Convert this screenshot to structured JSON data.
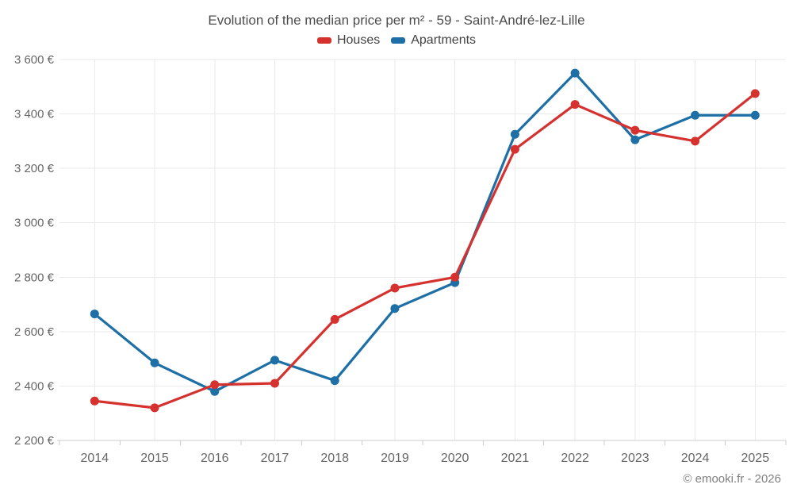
{
  "page": {
    "title": "Evolution of the median price per m² - 59 - Saint-André-lez-Lille",
    "footer_credit": "© emooki.fr - 2026"
  },
  "legend": {
    "items": [
      {
        "label": "Houses",
        "color": "#d5312e"
      },
      {
        "label": "Apartments",
        "color": "#1d6fa6"
      }
    ]
  },
  "chart_data": {
    "type": "line",
    "title": "Evolution of the median price per m² - 59 - Saint-André-lez-Lille",
    "categories": [
      "2014",
      "2015",
      "2016",
      "2017",
      "2018",
      "2019",
      "2020",
      "2021",
      "2022",
      "2023",
      "2024",
      "2025"
    ],
    "series": [
      {
        "name": "Houses",
        "color": "#d5312e",
        "values": [
          2345,
          2320,
          2405,
          2410,
          2645,
          2760,
          2800,
          3270,
          3435,
          3340,
          3300,
          3475
        ]
      },
      {
        "name": "Apartments",
        "color": "#1d6fa6",
        "values": [
          2665,
          2485,
          2380,
          2495,
          2420,
          2685,
          2780,
          3325,
          3550,
          3305,
          3395,
          3395
        ]
      }
    ],
    "xlabel": "",
    "ylabel": "",
    "ylim": [
      2200,
      3600
    ],
    "ytick_step": 200,
    "ytick_labels": [
      "2 200 €",
      "2 400 €",
      "2 600 €",
      "2 800 €",
      "3 000 €",
      "3 200 €",
      "3 400 €",
      "3 600 €"
    ],
    "grid": true,
    "legend_position": "top",
    "marker": "circle"
  },
  "style": {
    "grid_color": "#eaeaea",
    "axis_color": "#cccccc",
    "tick_label_color": "#666666",
    "title_color": "#4d4d4d",
    "legend_text_color": "#424242",
    "footer_color": "#808080"
  }
}
